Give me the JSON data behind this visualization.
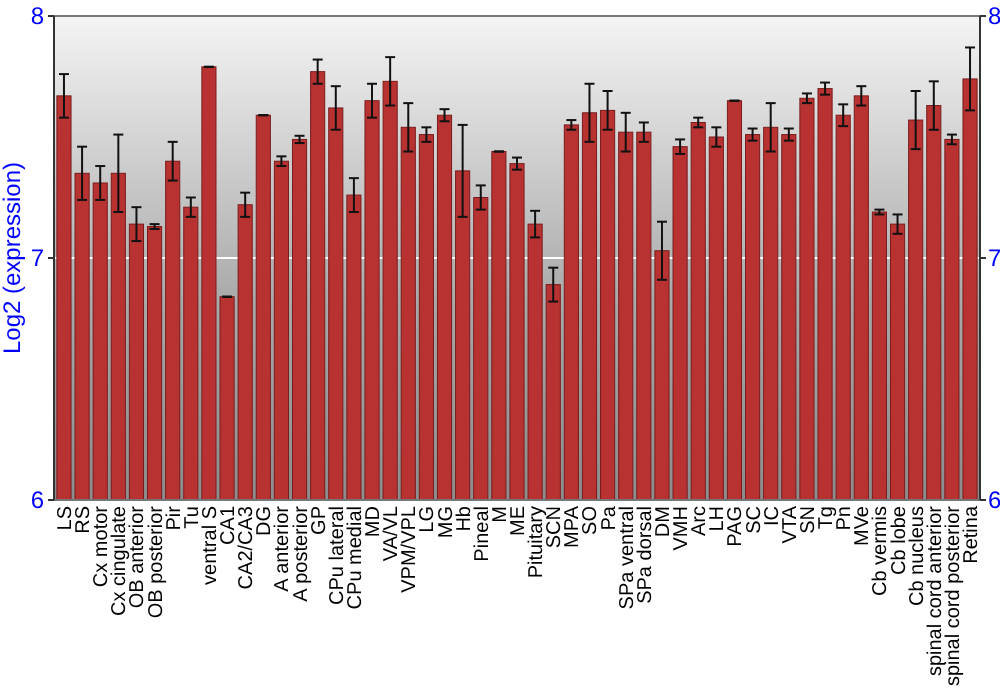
{
  "chart_data": {
    "type": "bar",
    "ylabel": "Log2 (expression)",
    "categories": [
      "LS",
      "RS",
      "Cx motor",
      "Cx cingulate",
      "OB anterior",
      "OB posterior",
      "Pir",
      "Tu",
      "ventral S",
      "CA1",
      "CA2/CA3",
      "DG",
      "A anterior",
      "A posterior",
      "GP",
      "CPu lateral",
      "CPu medial",
      "MD",
      "VA/VL",
      "VPM/VPL",
      "LG",
      "MG",
      "Hb",
      "Pineal",
      "M",
      "ME",
      "Pituitary",
      "SCN",
      "MPA",
      "SO",
      "Pa",
      "SPa ventral",
      "SPa dorsal",
      "DM",
      "VMH",
      "Arc",
      "LH",
      "PAG",
      "SC",
      "IC",
      "VTA",
      "SN",
      "Tg",
      "Pn",
      "MVe",
      "Cb vermis",
      "Cb lobe",
      "Cb nucleus",
      "spinal cord anterior",
      "spinal cord posterior",
      "Retina"
    ],
    "values": [
      7.67,
      7.35,
      7.31,
      7.35,
      7.14,
      7.13,
      7.4,
      7.21,
      7.79,
      6.84,
      7.22,
      7.59,
      7.4,
      7.49,
      7.77,
      7.62,
      7.26,
      7.65,
      7.73,
      7.54,
      7.51,
      7.59,
      7.36,
      7.25,
      7.44,
      7.39,
      7.14,
      6.89,
      7.55,
      7.6,
      7.61,
      7.52,
      7.52,
      7.03,
      7.46,
      7.56,
      7.5,
      7.65,
      7.51,
      7.54,
      7.51,
      7.66,
      7.7,
      7.59,
      7.67,
      7.19,
      7.14,
      7.57,
      7.63,
      7.49,
      7.74
    ],
    "errors": [
      0.09,
      0.11,
      0.07,
      0.16,
      0.07,
      0.01,
      0.08,
      0.04,
      0,
      0,
      0.05,
      0,
      0.02,
      0.015,
      0.05,
      0.09,
      0.07,
      0.07,
      0.1,
      0.1,
      0.03,
      0.025,
      0.19,
      0.05,
      0,
      0.025,
      0.055,
      0.07,
      0.02,
      0.12,
      0.08,
      0.08,
      0.04,
      0.12,
      0.03,
      0.02,
      0.04,
      0,
      0.025,
      0.1,
      0.025,
      0.02,
      0.025,
      0.045,
      0.04,
      0.01,
      0.04,
      0.12,
      0.1,
      0.02,
      0.13
    ],
    "color": "#b83232",
    "ylim": [
      6,
      8
    ],
    "yticks": [
      6,
      7,
      8
    ],
    "y2lim": [
      6,
      8
    ],
    "y2ticks": [
      6,
      7,
      8
    ],
    "grid": "y"
  }
}
